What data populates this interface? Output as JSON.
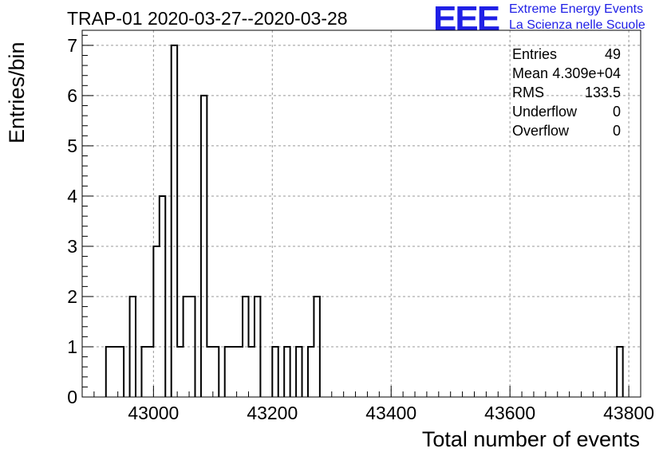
{
  "title": "TRAP-01 2020-03-27--2020-03-28",
  "logo": {
    "mark": "EEE",
    "line1": "Extreme Energy Events",
    "line2": "La Scienza nelle Scuole",
    "color": "#1f1fe6"
  },
  "stats": [
    {
      "label": "Entries",
      "value": "49"
    },
    {
      "label": "Mean",
      "value": "4.309e+04"
    },
    {
      "label": "RMS",
      "value": "133.5"
    },
    {
      "label": "Underflow",
      "value": "0"
    },
    {
      "label": "Overflow",
      "value": "0"
    }
  ],
  "chart_data": {
    "type": "bar",
    "title": "TRAP-01 2020-03-27--2020-03-28",
    "xlabel": "Total number of events",
    "ylabel": "Entries/bin",
    "xlim": [
      42880,
      43820
    ],
    "ylim": [
      0,
      7.3
    ],
    "bin_width": 10,
    "xticks": [
      43000,
      43200,
      43400,
      43600,
      43800
    ],
    "yticks": [
      0,
      1,
      2,
      3,
      4,
      5,
      6,
      7
    ],
    "grid": true,
    "bins": [
      {
        "x": 42920,
        "value": 1
      },
      {
        "x": 42930,
        "value": 1
      },
      {
        "x": 42940,
        "value": 1
      },
      {
        "x": 42960,
        "value": 2
      },
      {
        "x": 42980,
        "value": 1
      },
      {
        "x": 42990,
        "value": 1
      },
      {
        "x": 43000,
        "value": 3
      },
      {
        "x": 43010,
        "value": 4
      },
      {
        "x": 43030,
        "value": 7
      },
      {
        "x": 43040,
        "value": 1
      },
      {
        "x": 43050,
        "value": 2
      },
      {
        "x": 43060,
        "value": 2
      },
      {
        "x": 43080,
        "value": 6
      },
      {
        "x": 43090,
        "value": 1
      },
      {
        "x": 43100,
        "value": 1
      },
      {
        "x": 43120,
        "value": 1
      },
      {
        "x": 43130,
        "value": 1
      },
      {
        "x": 43140,
        "value": 1
      },
      {
        "x": 43150,
        "value": 2
      },
      {
        "x": 43160,
        "value": 1
      },
      {
        "x": 43170,
        "value": 2
      },
      {
        "x": 43200,
        "value": 1
      },
      {
        "x": 43220,
        "value": 1
      },
      {
        "x": 43240,
        "value": 1
      },
      {
        "x": 43260,
        "value": 1
      },
      {
        "x": 43270,
        "value": 2
      },
      {
        "x": 43780,
        "value": 1
      }
    ]
  }
}
